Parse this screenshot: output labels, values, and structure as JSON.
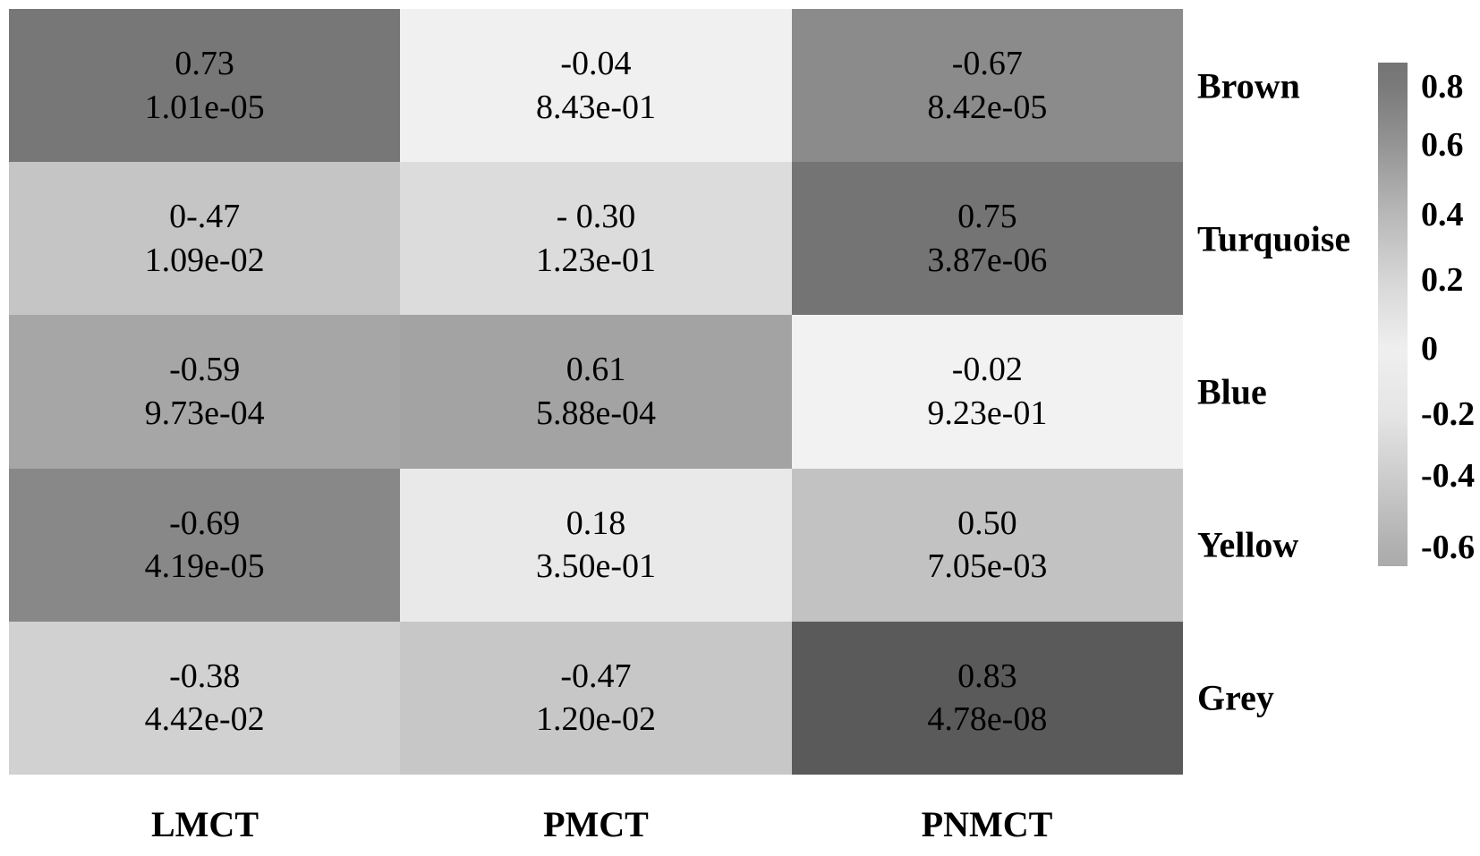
{
  "chart_data": {
    "type": "heatmap",
    "title": "",
    "columns": [
      "LMCT",
      "PMCT",
      "PNMCT"
    ],
    "rows": [
      "Brown",
      "Turquoise",
      "Blue",
      "Yellow",
      "Grey"
    ],
    "cell_text_format": "correlation (top line), p-value (bottom line)",
    "values": [
      [
        0.73,
        -0.04,
        -0.67
      ],
      [
        -0.47,
        -0.3,
        0.75
      ],
      [
        -0.59,
        0.61,
        -0.02
      ],
      [
        -0.69,
        0.18,
        0.5
      ],
      [
        -0.38,
        -0.47,
        0.83
      ]
    ],
    "pvalues": [
      [
        1.01e-05,
        0.843,
        8.42e-05
      ],
      [
        0.0109,
        0.123,
        3.87e-06
      ],
      [
        0.000973,
        0.000588,
        0.923
      ],
      [
        4.19e-05,
        0.35,
        0.00705
      ],
      [
        0.0442,
        0.012,
        4.78e-08
      ]
    ],
    "cells": [
      [
        {
          "value_label": "0.73",
          "p_label": "1.01e-05",
          "color": "#777777"
        },
        {
          "value_label": "-0.04",
          "p_label": "8.43e-01",
          "color": "#f0f0f0"
        },
        {
          "value_label": "-0.67",
          "p_label": "8.42e-05",
          "color": "#8b8b8b"
        }
      ],
      [
        {
          "value_label": "0-.47",
          "p_label": "1.09e-02",
          "color": "#c5c5c5"
        },
        {
          "value_label": "- 0.30",
          "p_label": "1.23e-01",
          "color": "#dcdcdc"
        },
        {
          "value_label": "0.75",
          "p_label": "3.87e-06",
          "color": "#747474"
        }
      ],
      [
        {
          "value_label": "-0.59",
          "p_label": "9.73e-04",
          "color": "#a6a6a6"
        },
        {
          "value_label": "0.61",
          "p_label": "5.88e-04",
          "color": "#a3a3a3"
        },
        {
          "value_label": "-0.02",
          "p_label": "9.23e-01",
          "color": "#f2f2f2"
        }
      ],
      [
        {
          "value_label": "-0.69",
          "p_label": "4.19e-05",
          "color": "#888888"
        },
        {
          "value_label": "0.18",
          "p_label": "3.50e-01",
          "color": "#e9e9e9"
        },
        {
          "value_label": "0.50",
          "p_label": "7.05e-03",
          "color": "#c2c2c2"
        }
      ],
      [
        {
          "value_label": "-0.38",
          "p_label": "4.42e-02",
          "color": "#d1d1d1"
        },
        {
          "value_label": "-0.47",
          "p_label": "1.20e-02",
          "color": "#c7c7c7"
        },
        {
          "value_label": "0.83",
          "p_label": "4.78e-08",
          "color": "#5a5a5a"
        }
      ]
    ],
    "colorbar": {
      "orientation": "vertical",
      "position": "right",
      "ticks": [
        "0.8",
        "0.6",
        "0.4",
        "0.2",
        "0",
        "-0.2",
        "-0.4",
        "-0.6"
      ],
      "range": [
        0.87,
        -0.66
      ],
      "top_color": "#757575",
      "zero_color": "#efefef",
      "bottom_color": "#ababab"
    },
    "grid": false,
    "legend_position": "none"
  }
}
